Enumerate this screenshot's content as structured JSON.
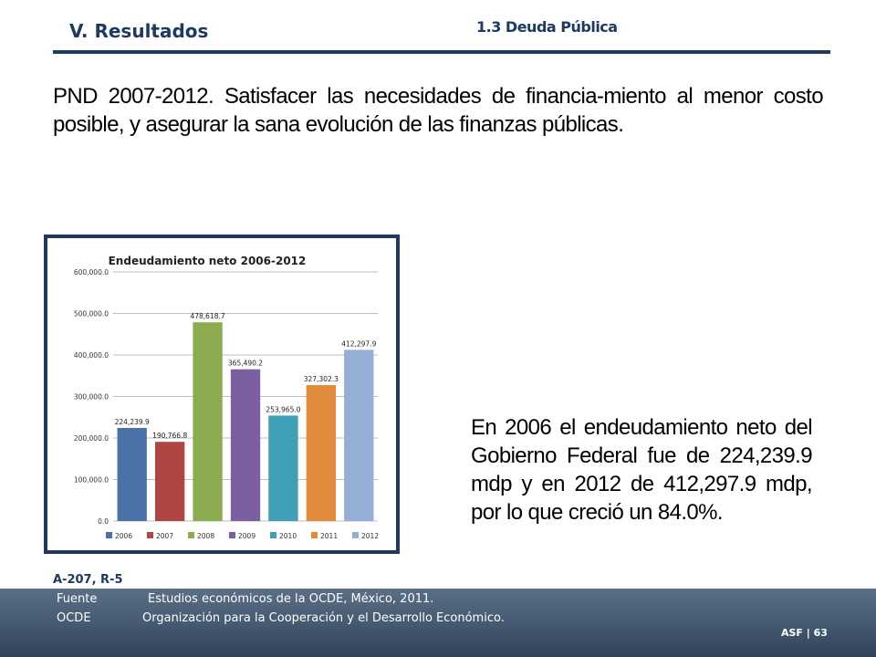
{
  "header": {
    "section_title": "V. Resultados",
    "section_sub": "1.3 Deuda Pública"
  },
  "lead_text": "PND 2007-2012. Satisfacer las necesidades de financia-miento al menor costo posible, y asegurar la sana evolución de las finanzas públicas.",
  "body_text": "En 2006 el endeudamiento neto del Gobierno Federal fue de 224,239.9 mdp y en 2012 de 412,297.9 mdp, por lo que creció un 84.0%.",
  "reference": "A-207, R-5",
  "footer": {
    "lines": [
      {
        "key": "Fuente",
        "value": "Estudios económicos de la OCDE, México, 2011."
      },
      {
        "key": "OCDE",
        "value": "Organización para la Cooperación y el Desarrollo Económico."
      }
    ],
    "page_label": "ASF | 63"
  },
  "chart_data": {
    "type": "bar",
    "title": "Endeudamiento neto 2006-2012",
    "categories": [
      "2006",
      "2007",
      "2008",
      "2009",
      "2010",
      "2011",
      "2012"
    ],
    "values": [
      224239.9,
      190766.8,
      478618.7,
      365490.2,
      253965.0,
      327302.3,
      412297.9
    ],
    "data_labels": [
      "224,239.9",
      "190,766.8",
      "478,618.7",
      "365,490.2",
      "253,965.0",
      "327,302.3",
      "412,297.9"
    ],
    "colors": [
      "#4a72a8",
      "#b04643",
      "#8dab4f",
      "#7b5fa0",
      "#3f9fb6",
      "#e08a3c",
      "#94aed6"
    ],
    "ylim": [
      0,
      600000
    ],
    "yticks": [
      0,
      100000,
      200000,
      300000,
      400000,
      500000,
      600000
    ],
    "ytick_labels": [
      "0.0",
      "100,000.0",
      "200,000.0",
      "300,000.0",
      "400,000.0",
      "500,000.0",
      "600,000.0"
    ],
    "legend": "bottom",
    "xlabel": "",
    "ylabel": ""
  }
}
